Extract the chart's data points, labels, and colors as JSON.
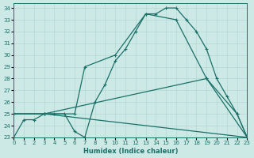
{
  "xlabel": "Humidex (Indice chaleur)",
  "bg_color": "#cde9e6",
  "grid_color": "#b2d8d4",
  "line_color": "#1a7068",
  "xlim": [
    0,
    23
  ],
  "ylim": [
    23,
    34.4
  ],
  "xticks": [
    0,
    1,
    2,
    3,
    4,
    5,
    6,
    7,
    8,
    9,
    10,
    11,
    12,
    13,
    14,
    15,
    16,
    17,
    18,
    19,
    20,
    21,
    22,
    23
  ],
  "yticks": [
    23,
    24,
    25,
    26,
    27,
    28,
    29,
    30,
    31,
    32,
    33,
    34
  ],
  "curve_main": {
    "x": [
      0,
      1,
      2,
      3,
      4,
      5,
      6,
      7,
      8,
      9,
      10,
      11,
      12,
      13,
      14,
      15,
      16,
      17,
      18,
      19,
      20,
      21,
      22,
      23
    ],
    "y": [
      23,
      24.5,
      24.5,
      25,
      25,
      25,
      23.5,
      23,
      26,
      27.5,
      29.5,
      30.5,
      32,
      33.5,
      33.5,
      34,
      34,
      33,
      32,
      30.5,
      28,
      26.5,
      25,
      23
    ]
  },
  "curve_up": {
    "x": [
      0,
      3,
      6,
      7,
      10,
      13,
      16,
      19,
      22,
      23
    ],
    "y": [
      25,
      25,
      25,
      29,
      30,
      33.5,
      33,
      28,
      25,
      23
    ]
  },
  "curve_mid": {
    "x": [
      0,
      3,
      19,
      23
    ],
    "y": [
      25,
      25,
      28,
      23
    ]
  },
  "curve_low": {
    "x": [
      0,
      3,
      23
    ],
    "y": [
      25,
      25,
      23
    ]
  }
}
